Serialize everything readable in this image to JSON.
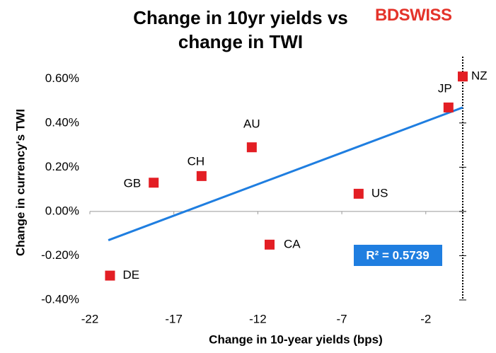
{
  "chart_data": {
    "type": "scatter",
    "title": "Change in 10yr yields vs change in TWI",
    "logo": "BDSWISS",
    "x_label": "Change in 10-year yields (bps)",
    "y_label": "Change in currency's  TWI",
    "labels": [
      "NZ",
      "JP",
      "AU",
      "CH",
      "GB",
      "US",
      "CA",
      "DE"
    ],
    "x": [
      0.2,
      -0.65,
      -12.36,
      -15.35,
      -18.2,
      -6.0,
      -11.3,
      -20.8
    ],
    "values": [
      0.61,
      0.47,
      0.29,
      0.16,
      0.13,
      0.08,
      -0.15,
      -0.29
    ],
    "color": "#e31e24",
    "trendline": {
      "x": [
        -20.9,
        0.2
      ],
      "y": [
        -0.13,
        0.47
      ],
      "color": "#1f7ee0",
      "label": "R² = 0.5739"
    },
    "xlim": [
      -22,
      0.2
    ],
    "ylim": [
      -0.4,
      0.7
    ],
    "xticks": [
      -22,
      -17,
      -12,
      -7,
      -2
    ],
    "yticks": [
      {
        "value": -0.4,
        "label": "-0.40%"
      },
      {
        "value": -0.2,
        "label": "-0.20%"
      },
      {
        "value": 0,
        "label": "0.00%"
      },
      {
        "value": 0.2,
        "label": "0.20%"
      },
      {
        "value": 0.4,
        "label": "0.40%"
      },
      {
        "value": 0.6,
        "label": "0.60%"
      }
    ],
    "grid": false
  }
}
